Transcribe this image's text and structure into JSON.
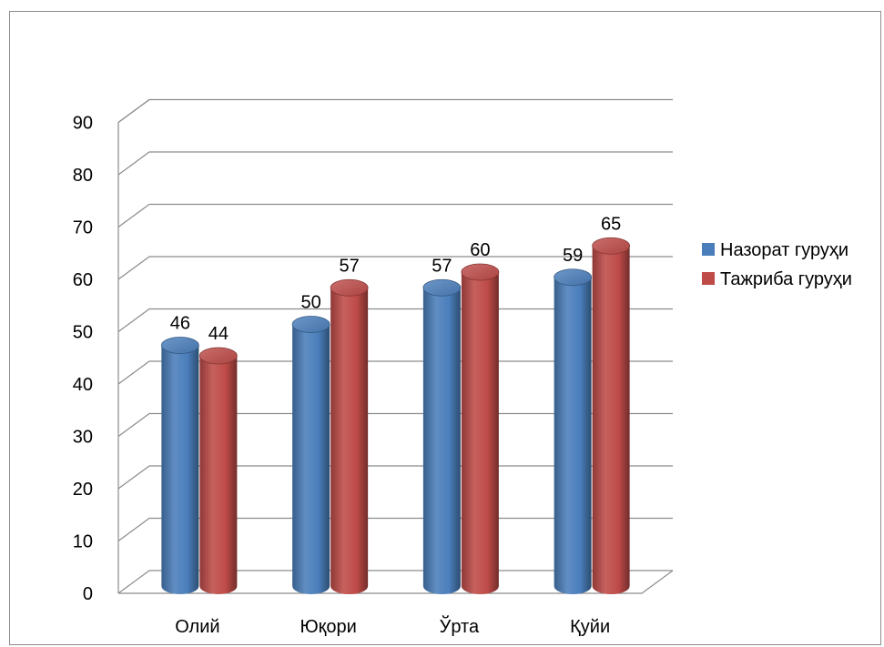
{
  "chart_data": {
    "type": "bar",
    "categories": [
      "Олий",
      "Юқори",
      "Ўрта",
      "Қуйи"
    ],
    "series": [
      {
        "name": "Назорат гуруҳи",
        "values": [
          46,
          50,
          57,
          59
        ],
        "color": "#4a7ebb"
      },
      {
        "name": "Тажриба гуруҳи",
        "values": [
          44,
          57,
          60,
          65
        ],
        "color": "#be4b48"
      }
    ],
    "yticks": [
      "0",
      "10",
      "20",
      "30",
      "40",
      "50",
      "60",
      "70",
      "80",
      "90"
    ],
    "ylim": [
      0,
      90
    ],
    "grid": true,
    "legend_position": "right",
    "style": "3d-cylinder"
  }
}
